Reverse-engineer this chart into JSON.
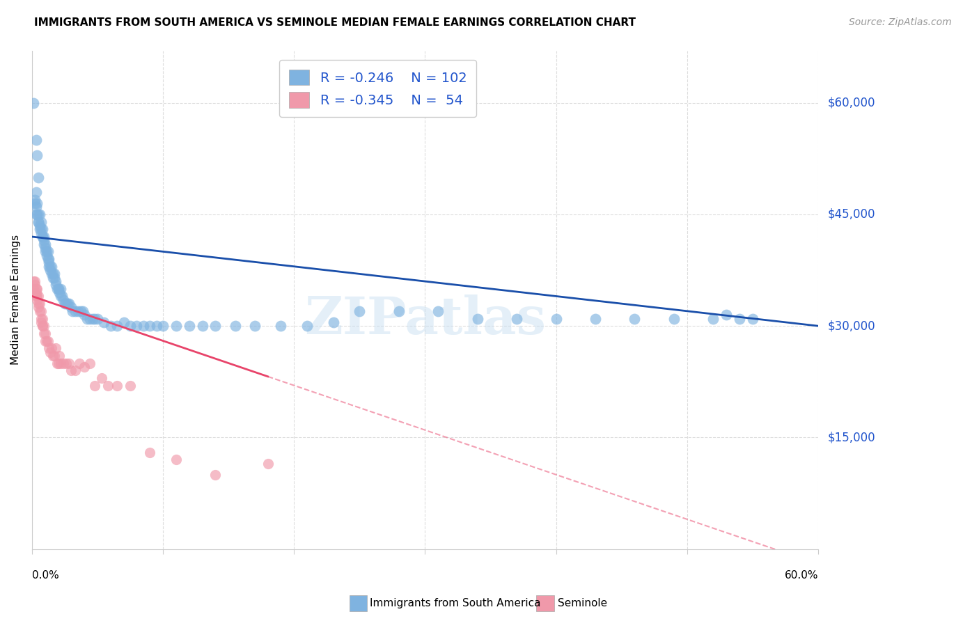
{
  "title": "IMMIGRANTS FROM SOUTH AMERICA VS SEMINOLE MEDIAN FEMALE EARNINGS CORRELATION CHART",
  "source": "Source: ZipAtlas.com",
  "ylabel": "Median Female Earnings",
  "ytick_values": [
    15000,
    30000,
    45000,
    60000
  ],
  "ytick_labels": [
    "$15,000",
    "$30,000",
    "$45,000",
    "$60,000"
  ],
  "xmin": 0.0,
  "xmax": 0.6,
  "ymin": 0,
  "ymax": 67000,
  "legend1_R": "-0.246",
  "legend1_N": "102",
  "legend2_R": "-0.345",
  "legend2_N": " 54",
  "legend_label1": "Immigrants from South America",
  "legend_label2": "Seminole",
  "blue_color": "#7fb3e0",
  "pink_color": "#f099aa",
  "blue_line_color": "#1a4faa",
  "pink_line_color": "#e8446a",
  "text_color": "#2255cc",
  "watermark": "ZIPatlas",
  "blue_intercept": 42000,
  "blue_slope": -20000,
  "pink_intercept": 34000,
  "pink_slope": -60000,
  "blue_scatter_x": [
    0.001,
    0.002,
    0.002,
    0.003,
    0.003,
    0.003,
    0.004,
    0.004,
    0.005,
    0.005,
    0.005,
    0.006,
    0.006,
    0.006,
    0.007,
    0.007,
    0.007,
    0.008,
    0.008,
    0.008,
    0.009,
    0.009,
    0.009,
    0.01,
    0.01,
    0.01,
    0.011,
    0.011,
    0.012,
    0.012,
    0.013,
    0.013,
    0.013,
    0.014,
    0.014,
    0.015,
    0.015,
    0.016,
    0.016,
    0.017,
    0.017,
    0.018,
    0.018,
    0.019,
    0.02,
    0.02,
    0.021,
    0.022,
    0.022,
    0.023,
    0.024,
    0.025,
    0.026,
    0.027,
    0.028,
    0.03,
    0.031,
    0.033,
    0.035,
    0.037,
    0.039,
    0.04,
    0.042,
    0.044,
    0.046,
    0.048,
    0.05,
    0.055,
    0.06,
    0.065,
    0.07,
    0.075,
    0.08,
    0.085,
    0.09,
    0.095,
    0.1,
    0.11,
    0.12,
    0.13,
    0.14,
    0.155,
    0.17,
    0.19,
    0.21,
    0.23,
    0.25,
    0.28,
    0.31,
    0.34,
    0.37,
    0.4,
    0.43,
    0.46,
    0.49,
    0.52,
    0.54,
    0.003,
    0.004,
    0.005,
    0.53,
    0.55
  ],
  "blue_scatter_y": [
    60000,
    47000,
    46500,
    48000,
    46000,
    45000,
    46500,
    45000,
    45000,
    44000,
    44000,
    45000,
    43500,
    43000,
    44000,
    43000,
    42500,
    43000,
    42000,
    42000,
    42000,
    41500,
    41000,
    41000,
    40500,
    40000,
    40000,
    39500,
    40000,
    39000,
    39000,
    38500,
    38000,
    38000,
    37500,
    38000,
    37000,
    37000,
    36500,
    37000,
    36500,
    36000,
    35500,
    35000,
    35000,
    35000,
    34500,
    35000,
    34000,
    34000,
    33500,
    33000,
    33000,
    33000,
    33000,
    32500,
    32000,
    32000,
    32000,
    32000,
    32000,
    31500,
    31000,
    31000,
    31000,
    31000,
    31000,
    30500,
    30000,
    30000,
    30500,
    30000,
    30000,
    30000,
    30000,
    30000,
    30000,
    30000,
    30000,
    30000,
    30000,
    30000,
    30000,
    30000,
    30000,
    30500,
    32000,
    32000,
    32000,
    31000,
    31000,
    31000,
    31000,
    31000,
    31000,
    31000,
    31000,
    55000,
    53000,
    50000,
    31500,
    31000
  ],
  "pink_scatter_x": [
    0.001,
    0.001,
    0.002,
    0.002,
    0.003,
    0.003,
    0.003,
    0.004,
    0.004,
    0.004,
    0.005,
    0.005,
    0.005,
    0.006,
    0.006,
    0.007,
    0.007,
    0.007,
    0.008,
    0.008,
    0.008,
    0.009,
    0.009,
    0.01,
    0.01,
    0.011,
    0.012,
    0.013,
    0.014,
    0.015,
    0.016,
    0.017,
    0.018,
    0.019,
    0.02,
    0.021,
    0.022,
    0.024,
    0.026,
    0.028,
    0.03,
    0.033,
    0.036,
    0.04,
    0.044,
    0.048,
    0.053,
    0.058,
    0.065,
    0.075,
    0.09,
    0.11,
    0.14,
    0.18
  ],
  "pink_scatter_y": [
    36000,
    35000,
    36000,
    35500,
    35000,
    34500,
    34000,
    35000,
    33500,
    34000,
    34000,
    33000,
    32500,
    33000,
    32000,
    32000,
    31000,
    30500,
    31000,
    30000,
    30000,
    30000,
    29000,
    28000,
    29000,
    28000,
    28000,
    27000,
    26500,
    27000,
    26000,
    26000,
    27000,
    25000,
    25000,
    26000,
    25000,
    25000,
    25000,
    25000,
    24000,
    24000,
    25000,
    24500,
    25000,
    22000,
    23000,
    22000,
    22000,
    22000,
    13000,
    12000,
    10000,
    11500
  ]
}
